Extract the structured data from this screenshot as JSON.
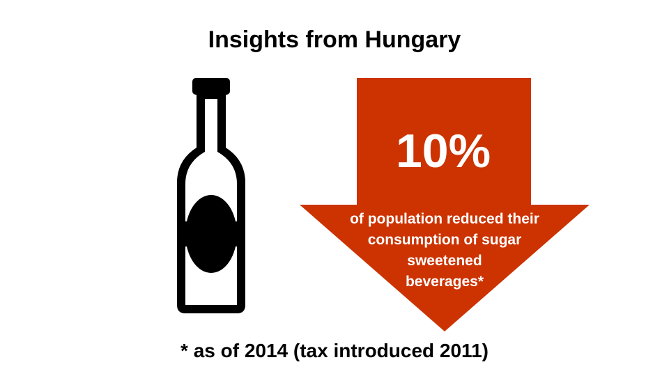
{
  "title": "Insights from Hungary",
  "stat": {
    "value": "10%",
    "caption_lines": [
      "of population reduced their",
      "consumption of sugar",
      "sweetened",
      "beverages*"
    ]
  },
  "footnote": "* as of 2014 (tax introduced 2011)",
  "icons": {
    "bottle": "bottle-icon",
    "arrow": "down-arrow-icon"
  },
  "colors": {
    "arrow": "#cc3300",
    "bottle": "#000000",
    "text_on_arrow": "#ffffff"
  }
}
